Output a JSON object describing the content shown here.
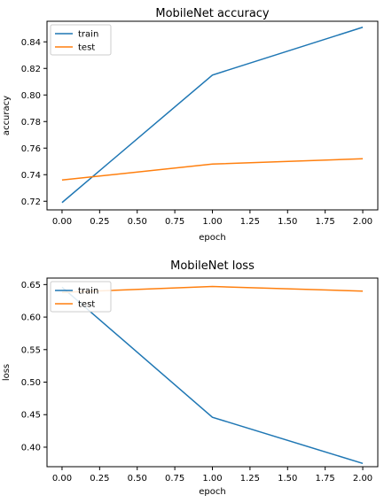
{
  "chart_data": [
    {
      "type": "line",
      "title": "MobileNet accuracy",
      "xlabel": "epoch",
      "ylabel": "accuracy",
      "x": [
        0,
        1,
        2
      ],
      "xlim": [
        -0.1,
        2.1
      ],
      "ylim": [
        0.7135,
        0.8555
      ],
      "xticks": [
        0.0,
        0.25,
        0.5,
        0.75,
        1.0,
        1.25,
        1.5,
        1.75,
        2.0
      ],
      "xtick_labels": [
        "0.00",
        "0.25",
        "0.50",
        "0.75",
        "1.00",
        "1.25",
        "1.50",
        "1.75",
        "2.00"
      ],
      "yticks": [
        0.72,
        0.74,
        0.76,
        0.78,
        0.8,
        0.82,
        0.84
      ],
      "ytick_labels": [
        "0.72",
        "0.74",
        "0.76",
        "0.78",
        "0.80",
        "0.82",
        "0.84"
      ],
      "legend_position": "upper-left",
      "grid": false,
      "series": [
        {
          "name": "train",
          "color": "#1f77b4",
          "values": [
            0.719,
            0.815,
            0.851
          ]
        },
        {
          "name": "test",
          "color": "#ff7f0e",
          "values": [
            0.736,
            0.748,
            0.752
          ]
        }
      ]
    },
    {
      "type": "line",
      "title": "MobileNet loss",
      "xlabel": "epoch",
      "ylabel": "loss",
      "x": [
        0,
        1,
        2
      ],
      "xlim": [
        -0.1,
        2.1
      ],
      "ylim": [
        0.37,
        0.66
      ],
      "xticks": [
        0.0,
        0.25,
        0.5,
        0.75,
        1.0,
        1.25,
        1.5,
        1.75,
        2.0
      ],
      "xtick_labels": [
        "0.00",
        "0.25",
        "0.50",
        "0.75",
        "1.00",
        "1.25",
        "1.50",
        "1.75",
        "2.00"
      ],
      "yticks": [
        0.4,
        0.45,
        0.5,
        0.55,
        0.6,
        0.65
      ],
      "ytick_labels": [
        "0.40",
        "0.45",
        "0.50",
        "0.55",
        "0.60",
        "0.65"
      ],
      "legend_position": "upper-left",
      "grid": false,
      "series": [
        {
          "name": "train",
          "color": "#1f77b4",
          "values": [
            0.646,
            0.446,
            0.375
          ]
        },
        {
          "name": "test",
          "color": "#ff7f0e",
          "values": [
            0.638,
            0.647,
            0.64
          ]
        }
      ]
    }
  ]
}
